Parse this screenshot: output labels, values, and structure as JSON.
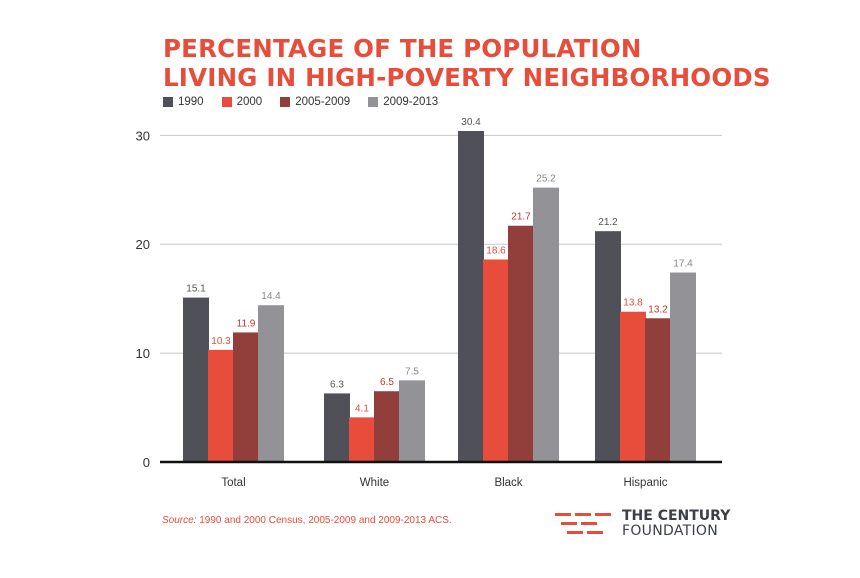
{
  "chart_data": {
    "type": "bar",
    "title_lines": [
      "PERCENTAGE OF THE POPULATION",
      "LIVING IN HIGH-POVERTY NEIGHBORHOODS"
    ],
    "categories": [
      "Total",
      "White",
      "Black",
      "Hispanic"
    ],
    "series": [
      {
        "name": "1990",
        "color": "#4f5058",
        "label_color": "#555555",
        "values": [
          15.1,
          6.3,
          30.4,
          21.2
        ],
        "labels": [
          "15.1",
          "6.3",
          "30.4",
          "21.2"
        ]
      },
      {
        "name": "2000",
        "color": "#e84c3a",
        "label_color": "#e84c3a",
        "values": [
          10.3,
          4.1,
          18.6,
          13.8
        ],
        "labels": [
          "10.3",
          "4.1",
          "18.6",
          "13.8"
        ]
      },
      {
        "name": "2005-2009",
        "color": "#923f3b",
        "label_color": "#c0392b",
        "values": [
          11.9,
          6.5,
          21.7,
          13.2
        ],
        "labels": [
          "11.9",
          "6.5",
          "21.7",
          "13.2"
        ]
      },
      {
        "name": "2009-2013",
        "color": "#939397",
        "label_color": "#888888",
        "values": [
          14.4,
          7.5,
          25.2,
          17.4
        ],
        "labels": [
          "14.4",
          "7.5",
          "25.2",
          "17.4"
        ]
      }
    ],
    "yticks": [
      0,
      10,
      20,
      30
    ],
    "ytick_labels": [
      "0",
      "10",
      "20",
      "30"
    ],
    "ylim": [
      0,
      30.4
    ],
    "grid": true,
    "legend": "top-left"
  },
  "source": {
    "prefix": "Source:",
    "text": " 1990 and 2000 Census, 2005-2009 and 2009-2013 ACS."
  },
  "logo": {
    "line1": "THE CENTURY",
    "line2": "FOUNDATION"
  }
}
